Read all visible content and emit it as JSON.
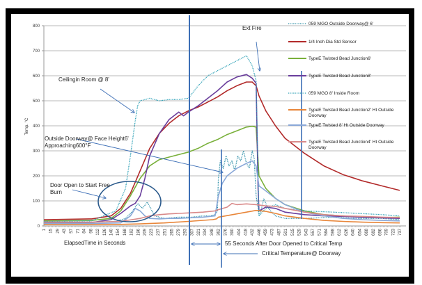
{
  "chart_data": {
    "type": "line",
    "title": "",
    "xlabel": "ElapsedTime in Seconds",
    "ylabel": "Temp. °C",
    "ylim": [
      0,
      800
    ],
    "xlim": [
      1,
      750
    ],
    "yticks": [
      0,
      100,
      200,
      300,
      400,
      500,
      600,
      700,
      800
    ],
    "xticks": [
      "1",
      "15",
      "29",
      "43",
      "57",
      "71",
      "84",
      "98",
      "112",
      "126",
      "140",
      "154",
      "168",
      "182",
      "196",
      "209",
      "223",
      "237",
      "251",
      "265",
      "279",
      "293",
      "307",
      "321",
      "334",
      "348",
      "362",
      "376",
      "390",
      "404",
      "418",
      "432",
      "446",
      "459",
      "473",
      "487",
      "501",
      "515",
      "529",
      "543",
      "557",
      "571",
      "584",
      "598",
      "612",
      "626",
      "640",
      "654",
      "668",
      "682",
      "696",
      "709",
      "723",
      "737"
    ],
    "grid": true,
    "legend_position": "right",
    "series": [
      {
        "name": "059 MGO Outside Doorway@ 6'",
        "color": "#2e8fa8",
        "style": "dotted",
        "x": [
          1,
          100,
          150,
          170,
          185,
          195,
          205,
          215,
          230,
          250,
          280,
          307,
          330,
          345,
          355,
          360,
          362,
          366,
          372,
          378,
          384,
          390,
          396,
          402,
          408,
          414,
          420,
          426,
          432,
          436,
          440,
          444,
          446,
          450,
          456,
          462,
          470,
          480,
          500,
          540,
          600,
          650,
          700,
          737
        ],
        "y": [
          15,
          15,
          18,
          30,
          60,
          90,
          70,
          95,
          40,
          30,
          35,
          35,
          40,
          40,
          45,
          60,
          190,
          260,
          230,
          280,
          240,
          260,
          220,
          280,
          260,
          300,
          250,
          230,
          300,
          270,
          120,
          70,
          40,
          60,
          110,
          80,
          60,
          40,
          30,
          30,
          35,
          30,
          30,
          25
        ]
      },
      {
        "name": "1/4 Inch Dia Std Sensor",
        "color": "#b22a2a",
        "style": "solid",
        "x": [
          1,
          100,
          140,
          160,
          180,
          200,
          220,
          240,
          260,
          280,
          300,
          320,
          340,
          360,
          380,
          400,
          420,
          432,
          440,
          446,
          460,
          480,
          500,
          540,
          580,
          620,
          660,
          700,
          737
        ],
        "y": [
          25,
          28,
          40,
          70,
          130,
          220,
          310,
          370,
          410,
          440,
          460,
          475,
          495,
          515,
          540,
          560,
          575,
          575,
          560,
          520,
          460,
          400,
          350,
          290,
          240,
          205,
          180,
          160,
          142
        ]
      },
      {
        "name": "TypeE Twisted Bead Junction6'",
        "color": "#79b03a",
        "style": "solid",
        "x": [
          1,
          100,
          140,
          160,
          180,
          200,
          220,
          240,
          260,
          280,
          300,
          320,
          340,
          360,
          380,
          400,
          420,
          432,
          440,
          446,
          460,
          480,
          500,
          540,
          580,
          620,
          660,
          700,
          737
        ],
        "y": [
          20,
          22,
          30,
          60,
          120,
          190,
          240,
          265,
          275,
          285,
          295,
          310,
          330,
          345,
          365,
          380,
          395,
          398,
          395,
          200,
          150,
          110,
          85,
          60,
          45,
          40,
          35,
          33,
          35
        ]
      },
      {
        "name": "TypeE Twisted Bead Junction8'",
        "color": "#6a3e9c",
        "style": "solid",
        "x": [
          1,
          100,
          140,
          160,
          180,
          190,
          200,
          210,
          220,
          240,
          260,
          280,
          290,
          300,
          320,
          340,
          360,
          380,
          400,
          420,
          432,
          440,
          444,
          446,
          460,
          480,
          500,
          540,
          580,
          620,
          660,
          700,
          737
        ],
        "y": [
          12,
          14,
          25,
          50,
          80,
          90,
          120,
          190,
          280,
          370,
          425,
          455,
          440,
          455,
          480,
          510,
          540,
          575,
          595,
          605,
          590,
          570,
          150,
          60,
          75,
          70,
          55,
          45,
          40,
          38,
          35,
          32,
          30
        ]
      },
      {
        "name": "059 MGO 8' Inside Room",
        "color": "#2a9fb5",
        "style": "dotted",
        "x": [
          1,
          100,
          130,
          150,
          170,
          180,
          190,
          195,
          200,
          210,
          220,
          240,
          260,
          280,
          300,
          320,
          340,
          360,
          380,
          400,
          420,
          432,
          440,
          446,
          460,
          480,
          500,
          540,
          600,
          650,
          700,
          737
        ],
        "y": [
          18,
          20,
          45,
          60,
          150,
          280,
          420,
          480,
          500,
          505,
          510,
          500,
          505,
          505,
          510,
          560,
          600,
          620,
          640,
          660,
          680,
          640,
          580,
          40,
          70,
          85,
          70,
          60,
          55,
          50,
          45,
          40
        ]
      },
      {
        "name": "TypeE Twisted Bead Junction2' Ht Outside Doorway",
        "color": "#e8863a",
        "style": "solid",
        "x": [
          1,
          100,
          160,
          200,
          250,
          300,
          350,
          358,
          362,
          400,
          440,
          460,
          480,
          500,
          540,
          580,
          620,
          660,
          700,
          737
        ],
        "y": [
          5,
          5,
          6,
          8,
          12,
          18,
          25,
          28,
          35,
          48,
          62,
          58,
          50,
          40,
          30,
          22,
          18,
          15,
          13,
          12
        ]
      },
      {
        "name": "TypeE Twisted 8' Ht Outside Doorway",
        "color": "#8aa8d8",
        "style": "solid",
        "x": [
          1,
          100,
          160,
          180,
          190,
          200,
          210,
          220,
          240,
          260,
          280,
          300,
          330,
          355,
          362,
          370,
          380,
          400,
          420,
          432,
          440,
          446,
          460,
          480,
          500,
          540,
          580,
          620,
          660,
          700,
          737
        ],
        "y": [
          10,
          10,
          12,
          40,
          70,
          60,
          40,
          30,
          28,
          30,
          30,
          32,
          35,
          40,
          120,
          170,
          200,
          230,
          250,
          260,
          240,
          160,
          140,
          110,
          85,
          55,
          40,
          30,
          25,
          22,
          20
        ]
      },
      {
        "name": "TypeE Twisted Bead Junction4' Ht Outside Doorway",
        "color": "#d98a8a",
        "style": "solid",
        "x": [
          1,
          100,
          160,
          200,
          220,
          240,
          260,
          280,
          300,
          330,
          355,
          362,
          380,
          390,
          400,
          420,
          440,
          460,
          480,
          500,
          540,
          580,
          620,
          660,
          700,
          737
        ],
        "y": [
          15,
          15,
          18,
          30,
          40,
          45,
          48,
          50,
          52,
          55,
          60,
          65,
          75,
          90,
          85,
          88,
          85,
          80,
          78,
          70,
          55,
          45,
          40,
          38,
          35,
          33
        ]
      }
    ],
    "annotations": [
      {
        "text": "Ext Fire"
      },
      {
        "text": "Ceilingin Room @ 8'"
      },
      {
        "text": "Outside Doorway@ Face Height6'"
      },
      {
        "text": "Approaching600°F"
      },
      {
        "text": "Door Open to Start Free"
      },
      {
        "text": "Burn"
      },
      {
        "text": "55 Seconds After Door Opened to Critical Temp"
      },
      {
        "text": "Critical Temperature@ Doorway"
      }
    ]
  }
}
